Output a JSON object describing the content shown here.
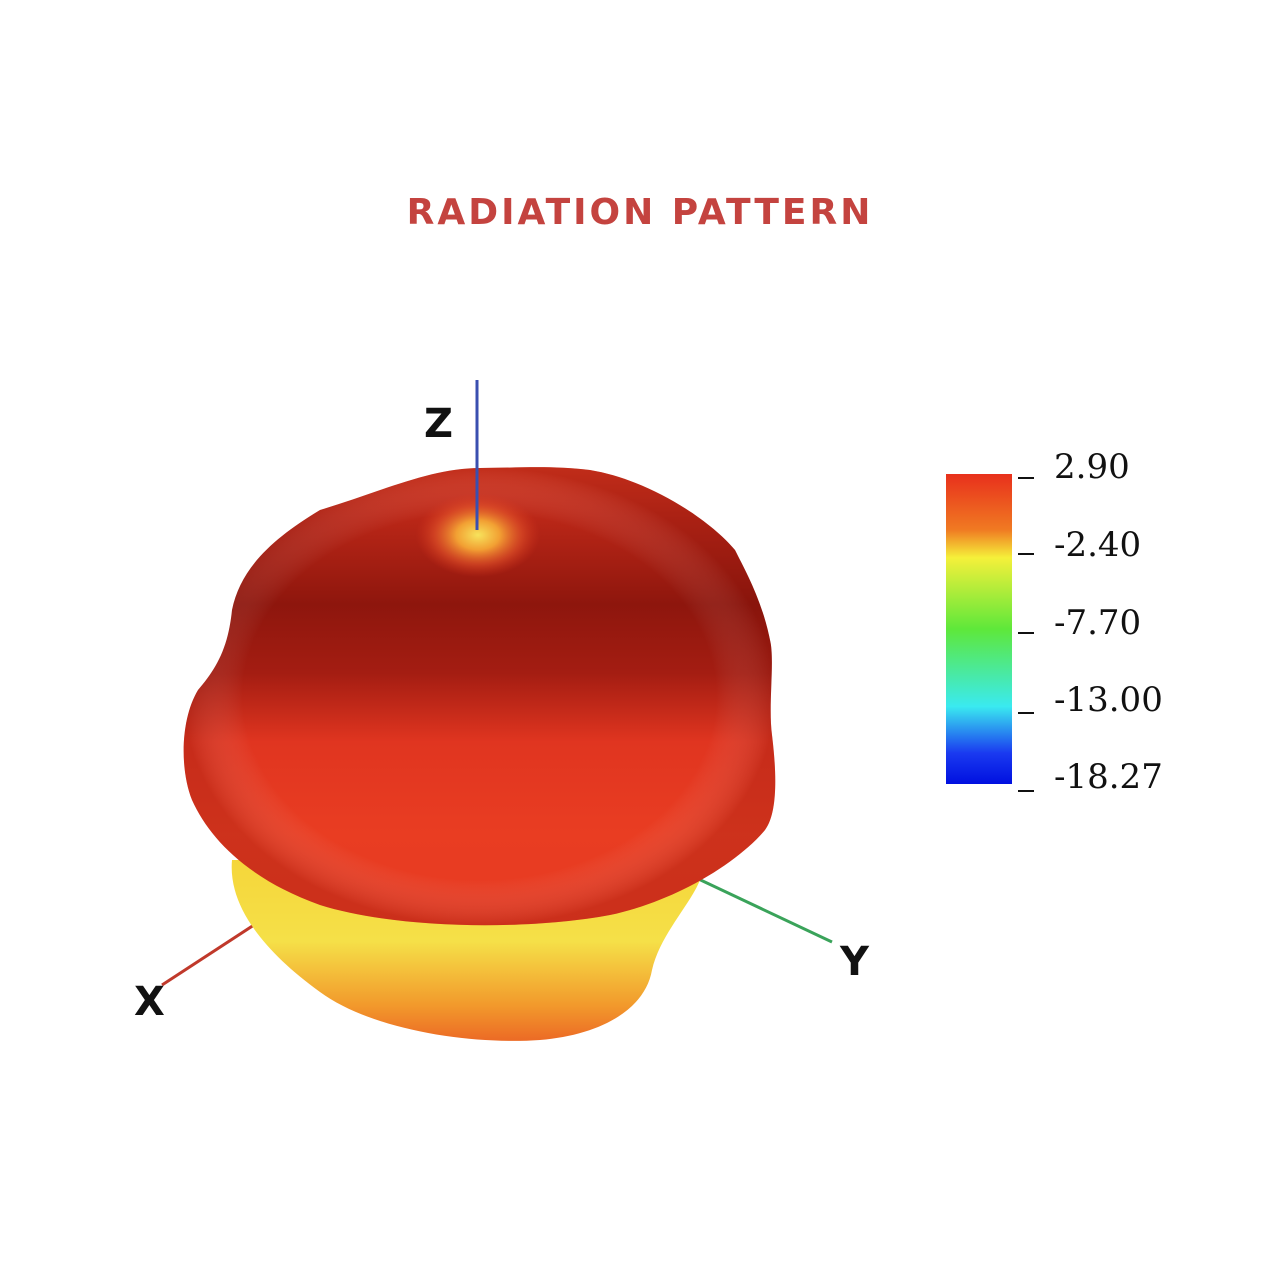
{
  "title": "RADIATION PATTERN",
  "axes": {
    "x_label": "X",
    "y_label": "Y",
    "z_label": "Z",
    "x_color": "#c0392b",
    "y_color": "#3aa35a",
    "z_color": "#3a4fb0"
  },
  "colorbar": {
    "ticks": [
      "2.90",
      "-2.40",
      "-7.70",
      "-13.00",
      "-18.27"
    ],
    "max": 2.9,
    "min": -18.27,
    "colors": [
      "#e8301c",
      "#f07a22",
      "#f5f03a",
      "#5ee83a",
      "#3aeaf0",
      "#1a3af0",
      "#0010e0"
    ]
  },
  "surface": {
    "top_color": "#8e160d",
    "body_color": "#e43a22",
    "lower_lobe_color": "#f5c12a",
    "hotspot_color": "#f5e05a"
  }
}
